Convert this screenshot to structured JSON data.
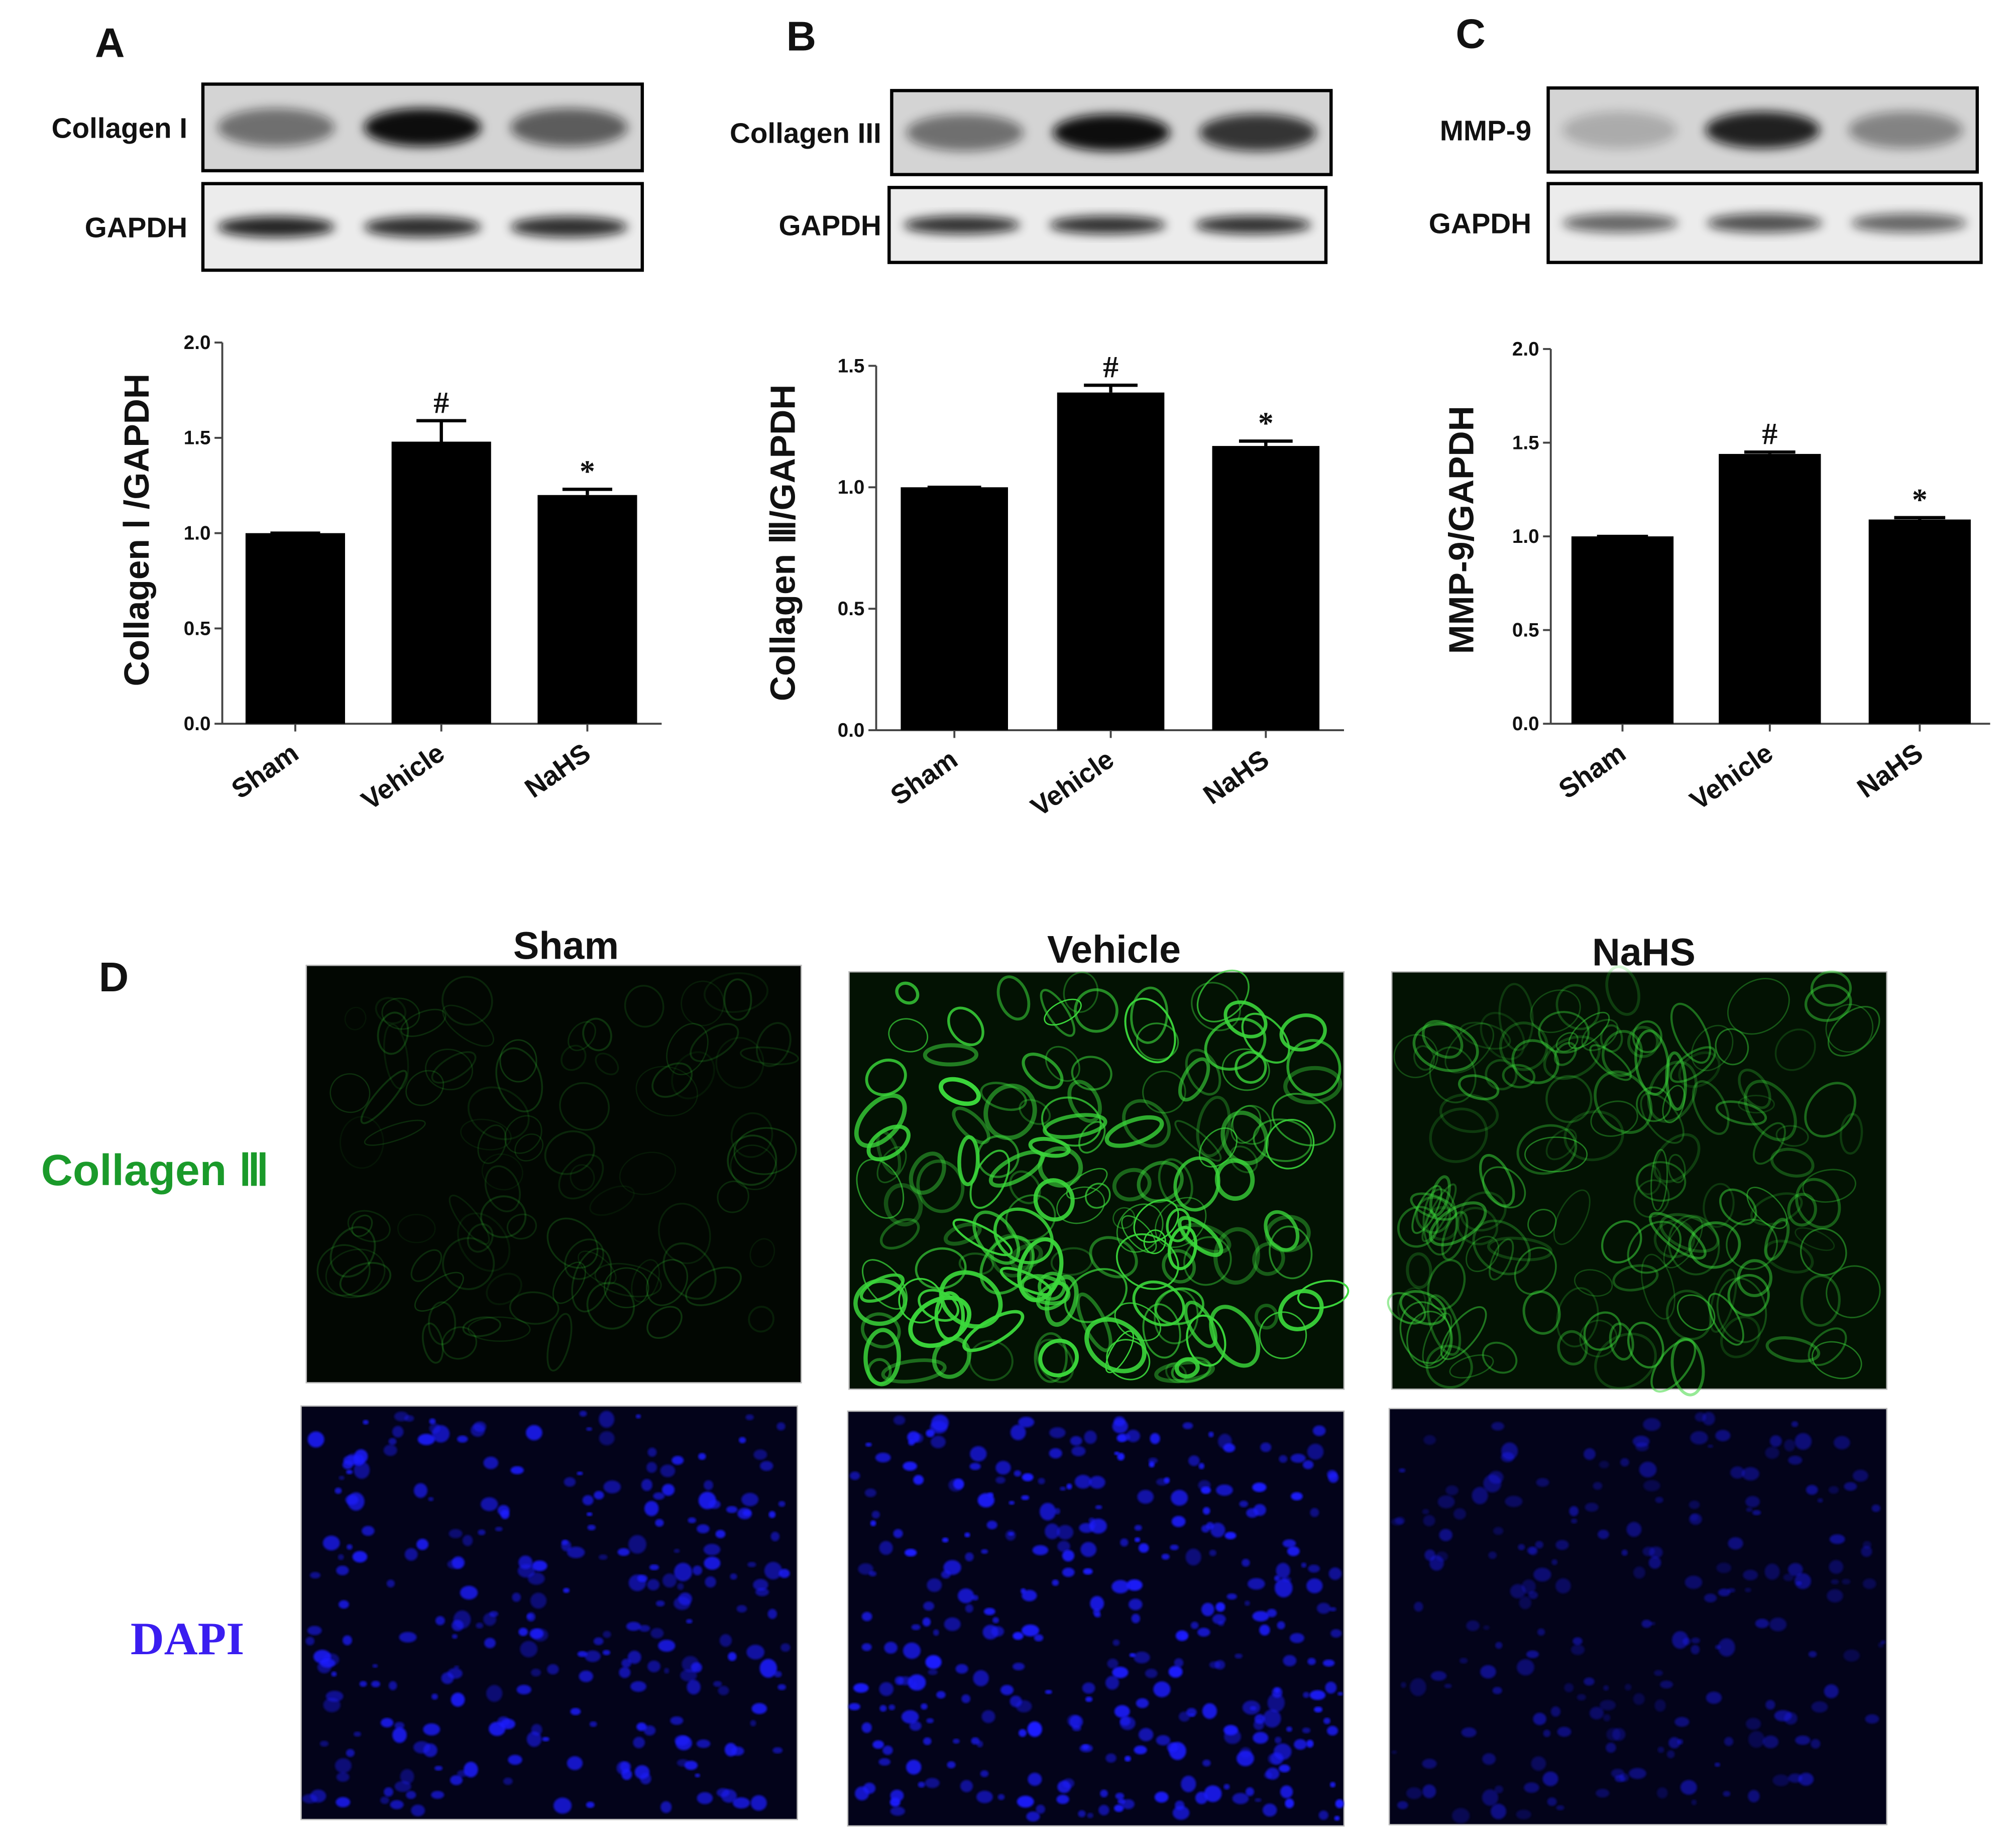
{
  "chart_data": [
    {
      "type": "bar",
      "panel": "A",
      "blots": [
        "Collagen I",
        "GAPDH"
      ],
      "y_label": "Collagen Ⅰ /GAPDH",
      "categories": [
        "Sham",
        "Vehicle",
        "NaHS"
      ],
      "values": [
        1.0,
        1.48,
        1.2
      ],
      "errors": [
        0,
        0.11,
        0.03
      ],
      "annotations": [
        null,
        "#",
        "*"
      ],
      "color": "#000000",
      "ylim": [
        0,
        2
      ],
      "yticks": [
        {
          "value": 0,
          "label": "0.0"
        },
        {
          "value": 0.5,
          "label": "0.5"
        },
        {
          "value": 1,
          "label": "1.0"
        },
        {
          "value": 1.5,
          "label": "1.5"
        },
        {
          "value": 2,
          "label": "2.0"
        }
      ]
    },
    {
      "type": "bar",
      "panel": "B",
      "blots": [
        "Collagen III",
        "GAPDH"
      ],
      "y_label": "Collagen Ⅲ/GAPDH",
      "categories": [
        "Sham",
        "Vehicle",
        "NaHS"
      ],
      "values": [
        1.0,
        1.39,
        1.17
      ],
      "errors": [
        0,
        0.03,
        0.02
      ],
      "annotations": [
        null,
        "#",
        "*"
      ],
      "color": "#000000",
      "ylim": [
        0,
        1.5
      ],
      "yticks": [
        {
          "value": 0,
          "label": "0.0"
        },
        {
          "value": 0.5,
          "label": "0.5"
        },
        {
          "value": 1,
          "label": "1.0"
        },
        {
          "value": 1.5,
          "label": "1.5"
        }
      ]
    },
    {
      "type": "bar",
      "panel": "C",
      "blots": [
        "MMP-9",
        "GAPDH"
      ],
      "y_label": "MMP-9/GAPDH",
      "categories": [
        "Sham",
        "Vehicle",
        "NaHS"
      ],
      "values": [
        1.0,
        1.44,
        1.09
      ],
      "errors": [
        0,
        0.01,
        0.01
      ],
      "annotations": [
        null,
        "#",
        "*"
      ],
      "color": "#000000",
      "ylim": [
        0,
        2
      ],
      "yticks": [
        {
          "value": 0,
          "label": "0.0"
        },
        {
          "value": 0.5,
          "label": "0.5"
        },
        {
          "value": 1,
          "label": "1.0"
        },
        {
          "value": 1.5,
          "label": "1.5"
        },
        {
          "value": 2,
          "label": "2.0"
        }
      ]
    }
  ],
  "panel_d": {
    "panel": "D",
    "columns": [
      "Sham",
      "Vehicle",
      "NaHS"
    ],
    "rows": [
      "Collagen Ⅲ",
      "DAPI"
    ]
  }
}
